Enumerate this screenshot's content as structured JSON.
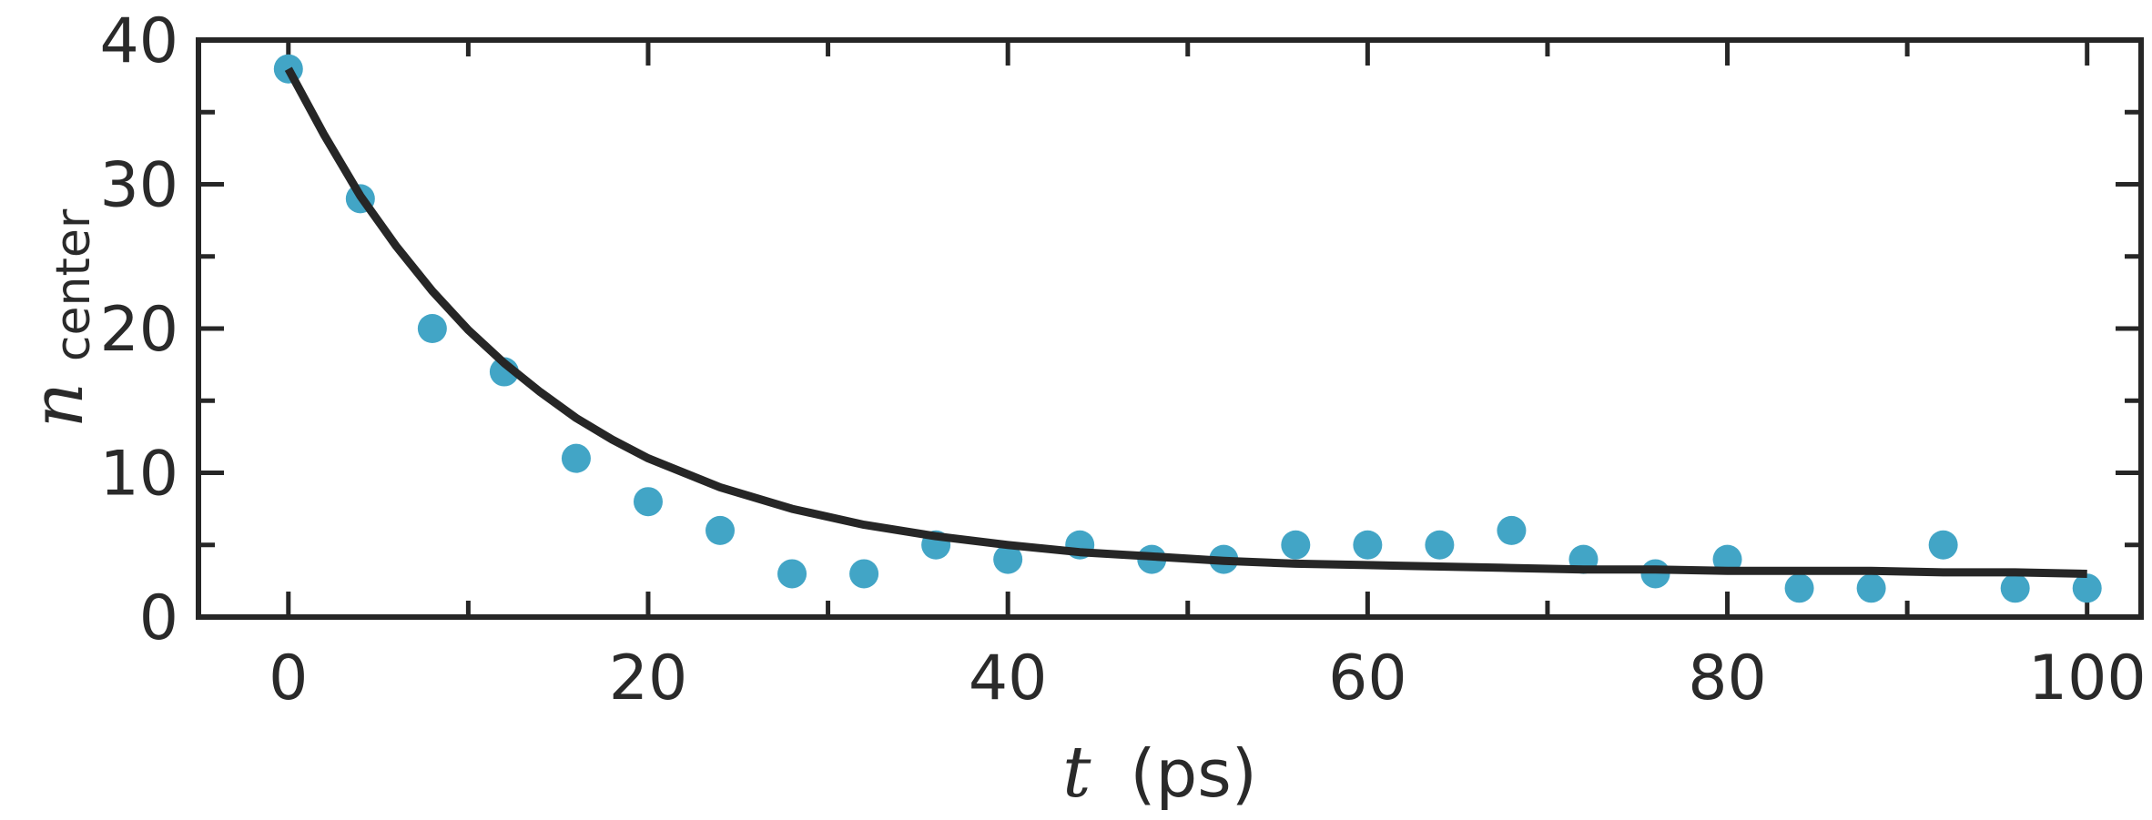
{
  "chart_data": {
    "type": "scatter",
    "xlabel": {
      "symbol": "t",
      "unit": "(ps)"
    },
    "ylabel": {
      "symbol": "n",
      "subscript": "center"
    },
    "xlim": [
      -5,
      103
    ],
    "ylim": [
      0,
      40
    ],
    "x_ticks": [
      0,
      20,
      40,
      60,
      80,
      100
    ],
    "x_tick_labels": [
      "0",
      "20",
      "40",
      "60",
      "80",
      "100"
    ],
    "y_ticks": [
      0,
      10,
      20,
      30,
      40
    ],
    "y_tick_labels": [
      "0",
      "10",
      "20",
      "30",
      "40"
    ],
    "grid": false,
    "colors": {
      "points": "#42a5c6",
      "fit": "#262626",
      "axes": "#262626"
    },
    "series": [
      {
        "kind": "scatter",
        "x": [
          0,
          4,
          8,
          12,
          16,
          20,
          24,
          28,
          32,
          36,
          40,
          44,
          48,
          52,
          56,
          60,
          64,
          68,
          72,
          76,
          80,
          84,
          88,
          92,
          96,
          100
        ],
        "y": [
          38,
          29,
          20,
          17,
          11,
          8,
          6,
          3,
          3,
          5,
          4,
          5,
          4,
          4,
          5,
          5,
          5,
          6,
          4,
          3,
          4,
          2,
          2,
          5,
          2,
          2
        ]
      },
      {
        "kind": "line",
        "function": "exponential decay fit",
        "x": [
          0,
          2,
          4,
          6,
          8,
          10,
          12,
          14,
          16,
          18,
          20,
          24,
          28,
          32,
          36,
          40,
          44,
          48,
          52,
          56,
          60,
          64,
          68,
          72,
          76,
          80,
          84,
          88,
          92,
          96,
          100
        ],
        "y": [
          38.0,
          33.4,
          29.2,
          25.7,
          22.6,
          19.9,
          17.6,
          15.6,
          13.8,
          12.3,
          11.0,
          9.0,
          7.5,
          6.4,
          5.6,
          5.0,
          4.5,
          4.2,
          3.9,
          3.7,
          3.6,
          3.5,
          3.4,
          3.3,
          3.3,
          3.2,
          3.2,
          3.2,
          3.1,
          3.1,
          3.0
        ]
      }
    ]
  }
}
